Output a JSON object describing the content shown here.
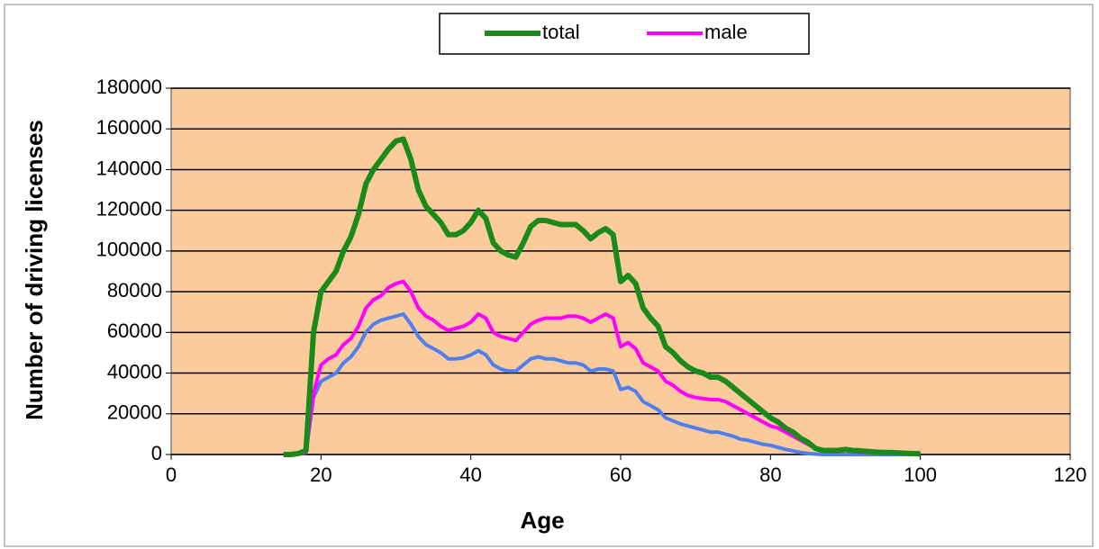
{
  "chart_data": {
    "type": "line",
    "xlabel": "Age",
    "ylabel": "Number of driving licenses",
    "x": [
      15,
      16,
      17,
      18,
      19,
      20,
      21,
      22,
      23,
      24,
      25,
      26,
      27,
      28,
      29,
      30,
      31,
      32,
      33,
      34,
      35,
      36,
      37,
      38,
      39,
      40,
      41,
      42,
      43,
      44,
      45,
      46,
      47,
      48,
      49,
      50,
      51,
      52,
      53,
      54,
      55,
      56,
      57,
      58,
      59,
      60,
      61,
      62,
      63,
      64,
      65,
      66,
      67,
      68,
      69,
      70,
      71,
      72,
      73,
      74,
      75,
      76,
      77,
      78,
      79,
      80,
      81,
      82,
      83,
      84,
      85,
      86,
      87,
      88,
      89,
      90,
      91,
      92,
      93,
      94,
      95,
      96,
      97,
      98,
      99,
      100
    ],
    "series": [
      {
        "name": "total",
        "color": "#1a8a1a",
        "values": [
          0,
          0,
          500,
          2000,
          60000,
          80000,
          85000,
          90000,
          100000,
          107000,
          118000,
          133000,
          140000,
          145000,
          150000,
          154000,
          155000,
          145000,
          130000,
          122000,
          118000,
          114000,
          108000,
          108000,
          110000,
          114000,
          120000,
          116000,
          104000,
          100000,
          98000,
          97000,
          104000,
          112000,
          115000,
          115000,
          114000,
          113000,
          113000,
          113000,
          110000,
          106000,
          109000,
          111000,
          108000,
          85000,
          88000,
          84000,
          72000,
          67000,
          63000,
          53000,
          50000,
          46000,
          43000,
          41000,
          40000,
          38000,
          38000,
          36000,
          33000,
          30000,
          27000,
          24000,
          21000,
          18000,
          16000,
          13000,
          11000,
          8000,
          6000,
          3000,
          2000,
          2000,
          2000,
          2500,
          2000,
          1800,
          1500,
          1200,
          1000,
          1000,
          800,
          600,
          500,
          300
        ]
      },
      {
        "name": "male",
        "color": "#ff00ff",
        "values": [
          0,
          0,
          200,
          1000,
          30000,
          44000,
          47000,
          49000,
          54000,
          57000,
          63000,
          72000,
          76000,
          78000,
          82000,
          84000,
          85000,
          80000,
          72000,
          68000,
          66000,
          63000,
          61000,
          62000,
          63000,
          65000,
          69000,
          67000,
          60000,
          58000,
          57000,
          56000,
          60000,
          64000,
          66000,
          67000,
          67000,
          67000,
          68000,
          68000,
          67000,
          65000,
          67000,
          69000,
          67000,
          53000,
          55000,
          52000,
          45000,
          43000,
          41000,
          36000,
          34000,
          31000,
          29000,
          28000,
          27500,
          27000,
          27000,
          26000,
          24000,
          22000,
          20000,
          18000,
          16000,
          14000,
          13000,
          11000,
          9000,
          7000,
          5000,
          3000,
          2000,
          1500,
          1500,
          2000,
          1500,
          1200,
          1000,
          800,
          700,
          600,
          500,
          400,
          300,
          200
        ]
      },
      {
        "color": "#4f7fef",
        "values": [
          0,
          0,
          200,
          1000,
          28000,
          36000,
          38000,
          40000,
          45000,
          48000,
          53000,
          60000,
          64000,
          66000,
          67000,
          68000,
          69000,
          64000,
          58000,
          54000,
          52000,
          50000,
          47000,
          47000,
          47500,
          49000,
          51000,
          49000,
          44000,
          42000,
          41000,
          41000,
          44000,
          47000,
          48000,
          47000,
          47000,
          46000,
          45000,
          45000,
          44000,
          41000,
          42000,
          42000,
          41000,
          32000,
          33000,
          31000,
          26000,
          24000,
          22000,
          18000,
          16500,
          15000,
          14000,
          13000,
          12000,
          11000,
          11000,
          10000,
          9000,
          7500,
          7000,
          6000,
          5000,
          4500,
          3500,
          2500,
          1800,
          1000,
          500,
          200,
          0,
          0,
          0,
          0,
          0,
          0,
          0,
          0,
          0,
          0,
          0,
          0,
          0,
          0
        ]
      }
    ],
    "xlim": [
      0,
      120
    ],
    "xticks": [
      0,
      20,
      40,
      60,
      80,
      100,
      120
    ],
    "ylim": [
      0,
      180000
    ],
    "yticks": [
      0,
      20000,
      40000,
      60000,
      80000,
      100000,
      120000,
      140000,
      160000,
      180000
    ],
    "grid": true,
    "legend": "top",
    "plot_background": "#fccb9c"
  }
}
